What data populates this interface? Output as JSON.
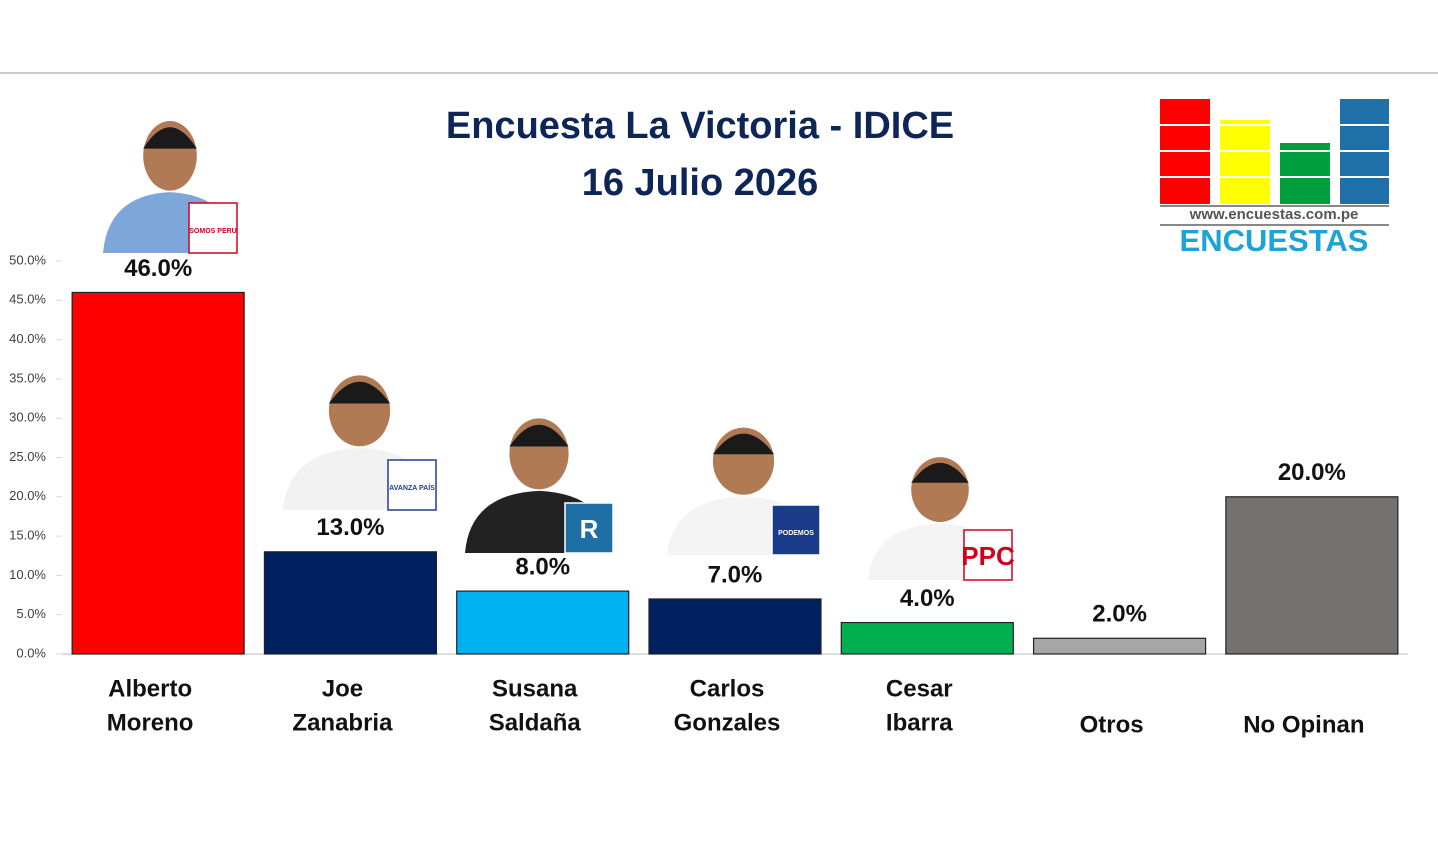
{
  "chart_data": {
    "type": "bar",
    "title": "Encuesta La Victoria - IDICE",
    "subtitle": "16 Julio 2026",
    "categories": [
      [
        "Alberto",
        "Moreno"
      ],
      [
        "Joe",
        "Zanabria"
      ],
      [
        "Susana",
        "Saldaña"
      ],
      [
        "Carlos",
        "Gonzales"
      ],
      [
        "Cesar",
        "Ibarra"
      ],
      [
        "Otros"
      ],
      [
        "No Opinan"
      ]
    ],
    "values": [
      46,
      13,
      8,
      7,
      4,
      2,
      20
    ],
    "value_labels": [
      "46.0%",
      "13.0%",
      "8.0%",
      "7.0%",
      "4.0%",
      "2.0%",
      "20.0%"
    ],
    "colors": [
      "#ff0000",
      "#002060",
      "#00b0f0",
      "#002060",
      "#00b050",
      "#a6a6a6",
      "#767171"
    ],
    "ylim": [
      0,
      50
    ],
    "yticks": [
      {
        "value": 0,
        "label": "0.0%"
      },
      {
        "value": 5,
        "label": "5.0%"
      },
      {
        "value": 10,
        "label": "10.0%"
      },
      {
        "value": 15,
        "label": "15.0%"
      },
      {
        "value": 20,
        "label": "20.0%"
      },
      {
        "value": 25,
        "label": "25.0%"
      },
      {
        "value": 30,
        "label": "30.0%"
      },
      {
        "value": 35,
        "label": "35.0%"
      },
      {
        "value": 40,
        "label": "40.0%"
      },
      {
        "value": 45,
        "label": "45.0%"
      },
      {
        "value": 50,
        "label": "50.0%"
      }
    ],
    "grid": false
  },
  "logos": [
    "SOMOS PERU",
    "AVANZA PAÍS",
    "R",
    "PODEMOS",
    "PPC"
  ],
  "brand": {
    "url": "www.encuestas.com.pe",
    "name": "ENCUESTAS"
  }
}
